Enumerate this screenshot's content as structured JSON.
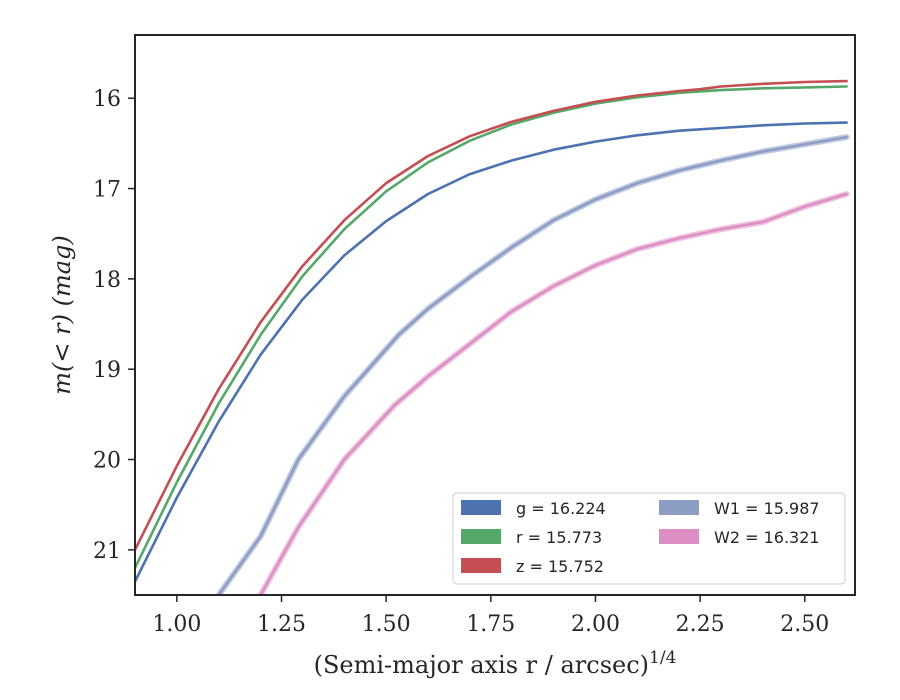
{
  "chart_data": {
    "type": "line",
    "xlabel": "(Semi-major axis r / arcsec)",
    "xlabel_superscript": "1/4",
    "ylabel": "m(< r) (mag)",
    "xlim": [
      0.9,
      2.62
    ],
    "ylim": [
      21.5,
      15.3
    ],
    "y_inverted": true,
    "x_ticks": [
      1.0,
      1.25,
      1.5,
      1.75,
      2.0,
      2.25,
      2.5
    ],
    "x_tick_labels": [
      "1.00",
      "1.25",
      "1.50",
      "1.75",
      "2.00",
      "2.25",
      "2.50"
    ],
    "y_ticks": [
      16,
      17,
      18,
      19,
      20,
      21
    ],
    "y_tick_labels": [
      "16",
      "17",
      "18",
      "19",
      "20",
      "21"
    ],
    "grid": false,
    "legend_position": "lower-right",
    "legend_columns": 2,
    "series": [
      {
        "name": "g = 16.224",
        "color": "#4c72b0",
        "x": [
          0.9,
          1.0,
          1.1,
          1.2,
          1.3,
          1.4,
          1.5,
          1.6,
          1.7,
          1.8,
          1.9,
          2.0,
          2.1,
          2.2,
          2.3,
          2.4,
          2.5,
          2.6
        ],
        "y": [
          21.35,
          20.42,
          19.58,
          18.84,
          18.23,
          17.74,
          17.36,
          17.06,
          16.84,
          16.69,
          16.57,
          16.48,
          16.41,
          16.36,
          16.33,
          16.3,
          16.28,
          16.27
        ]
      },
      {
        "name": "r = 15.773",
        "color": "#55a868",
        "x": [
          0.9,
          1.0,
          1.1,
          1.2,
          1.3,
          1.4,
          1.5,
          1.6,
          1.7,
          1.8,
          1.9,
          2.0,
          2.1,
          2.2,
          2.3,
          2.4,
          2.5,
          2.6
        ],
        "y": [
          21.2,
          20.25,
          19.38,
          18.62,
          17.97,
          17.45,
          17.03,
          16.71,
          16.47,
          16.29,
          16.16,
          16.06,
          15.99,
          15.94,
          15.91,
          15.89,
          15.88,
          15.87
        ]
      },
      {
        "name": "z = 15.752",
        "color": "#c44e52",
        "x": [
          0.9,
          1.0,
          1.1,
          1.2,
          1.3,
          1.4,
          1.5,
          1.6,
          1.7,
          1.8,
          1.9,
          2.0,
          2.1,
          2.2,
          2.25,
          2.3,
          2.4,
          2.5,
          2.6
        ],
        "y": [
          21.0,
          20.07,
          19.22,
          18.48,
          17.86,
          17.35,
          16.94,
          16.64,
          16.42,
          16.26,
          16.14,
          16.04,
          15.97,
          15.92,
          15.9,
          15.87,
          15.84,
          15.82,
          15.81
        ]
      },
      {
        "name": "W1 = 15.987",
        "color": "#8c9dc4",
        "x": [
          1.1,
          1.2,
          1.29,
          1.4,
          1.53,
          1.6,
          1.7,
          1.8,
          1.9,
          2.0,
          2.1,
          2.2,
          2.3,
          2.4,
          2.5,
          2.6
        ],
        "y": [
          21.5,
          20.85,
          20.0,
          19.3,
          18.62,
          18.33,
          17.98,
          17.65,
          17.35,
          17.12,
          16.94,
          16.8,
          16.69,
          16.59,
          16.51,
          16.43
        ]
      },
      {
        "name": "W2 = 16.321",
        "color": "#dd8fc4",
        "x": [
          1.2,
          1.29,
          1.4,
          1.52,
          1.6,
          1.7,
          1.8,
          1.9,
          2.0,
          2.1,
          2.2,
          2.3,
          2.4,
          2.5,
          2.6
        ],
        "y": [
          21.5,
          20.75,
          20.0,
          19.4,
          19.08,
          18.72,
          18.36,
          18.08,
          17.85,
          17.67,
          17.55,
          17.45,
          17.37,
          17.2,
          17.06
        ]
      }
    ]
  }
}
